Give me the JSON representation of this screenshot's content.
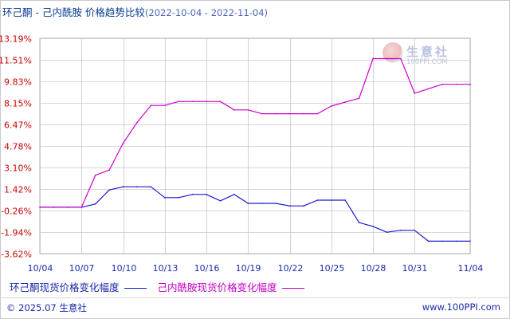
{
  "header": {
    "title": "环己酮 - 己内酰胺 价格趋势比较",
    "range": "(2022-10-04 - 2022-11-04)"
  },
  "watermark": {
    "name": "生意社",
    "url": "100PPI.COM"
  },
  "colors": {
    "series1": "#1a1acc",
    "series2": "#cc00cc",
    "ytick": "#cc0000",
    "xtick": "#1a2aa8",
    "grid": "#c8c8c8"
  },
  "chart_data": {
    "type": "line",
    "title": "环己酮 - 己内酰胺 价格趋势比较",
    "x_tick_labels": [
      "10/04",
      "10/07",
      "10/10",
      "10/13",
      "10/16",
      "10/19",
      "10/22",
      "10/25",
      "10/28",
      "10/31",
      "11/04"
    ],
    "y_tick_labels": [
      "13.19%",
      "11.51%",
      "9.83%",
      "8.15%",
      "6.47%",
      "4.78%",
      "3.10%",
      "1.42%",
      "-0.26%",
      "-1.94%",
      "-3.62%"
    ],
    "y_ticks": [
      13.19,
      11.51,
      9.83,
      8.15,
      6.47,
      4.78,
      3.1,
      1.42,
      -0.26,
      -1.94,
      -3.62
    ],
    "ylim": [
      -3.62,
      13.19
    ],
    "x_dates": [
      "10/04",
      "10/05",
      "10/06",
      "10/07",
      "10/08",
      "10/09",
      "10/10",
      "10/11",
      "10/12",
      "10/13",
      "10/14",
      "10/15",
      "10/16",
      "10/17",
      "10/18",
      "10/19",
      "10/20",
      "10/21",
      "10/22",
      "10/23",
      "10/24",
      "10/25",
      "10/26",
      "10/27",
      "10/28",
      "10/29",
      "10/30",
      "10/31",
      "11/01",
      "11/02",
      "11/03",
      "11/04"
    ],
    "series": [
      {
        "name": "环己酮现货价格变化幅度",
        "values": [
          0,
          0,
          0,
          0,
          0.25,
          1.35,
          1.6,
          1.6,
          1.6,
          0.75,
          0.75,
          1.0,
          1.0,
          0.5,
          1.0,
          0.3,
          0.3,
          0.3,
          0.1,
          0.1,
          0.55,
          0.55,
          0.55,
          -1.2,
          -1.5,
          -1.95,
          -1.8,
          -1.8,
          -2.65,
          -2.65,
          -2.65,
          -2.65
        ]
      },
      {
        "name": "己内酰胺现货价格变化幅度",
        "values": [
          0,
          0,
          0,
          0,
          2.5,
          2.9,
          5.0,
          6.6,
          7.95,
          7.95,
          8.25,
          8.25,
          8.25,
          8.25,
          7.6,
          7.6,
          7.3,
          7.3,
          7.3,
          7.3,
          7.3,
          7.9,
          8.2,
          8.5,
          11.6,
          11.6,
          11.6,
          8.9,
          9.25,
          9.6,
          9.6,
          9.6
        ]
      }
    ],
    "grid": true
  },
  "legend": {
    "series1_label": "环己酮现货价格变化幅度",
    "series2_label": "己内酰胺现货价格变化幅度"
  },
  "footer": {
    "copyright": "© 2025.07 生意社",
    "site": "www.100PPI.com"
  }
}
